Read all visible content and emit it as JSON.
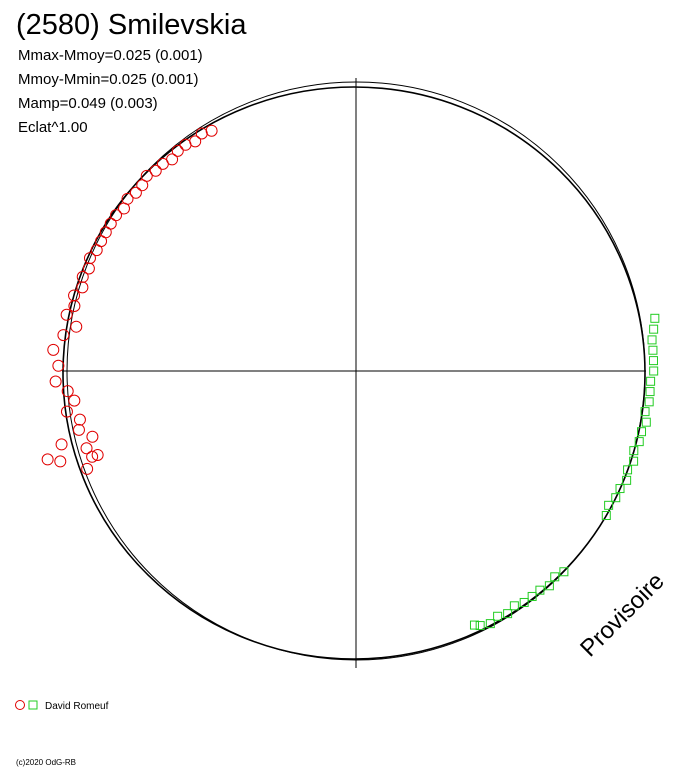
{
  "chart_data": {
    "type": "polar-scatter",
    "title": "(2580) Smilevskia",
    "stats": [
      "Mmax-Mmoy=0.025 (0.001)",
      "Mmoy-Mmin=0.025 (0.001)",
      "Mamp=0.049 (0.003)",
      "Eclat^1.00"
    ],
    "watermark": "Provisoire",
    "legend": "David Romeuf",
    "footer": "(c)2020 OdG-RB",
    "rlim": [
      0,
      1
    ],
    "series": [
      {
        "color": "#e00000",
        "marker": "circle",
        "angles": [
          121,
          123,
          125,
          127,
          129,
          131,
          133,
          135,
          137,
          139,
          141,
          143,
          145,
          147,
          149,
          151,
          153,
          155,
          157,
          159,
          161,
          163,
          165,
          167,
          169,
          171,
          173,
          176,
          179,
          182,
          184,
          186,
          188,
          190,
          192,
          194,
          196,
          198,
          200,
          197,
          194,
          196,
          198
        ],
        "values": [
          0.97,
          0.98,
          0.97,
          0.98,
          0.98,
          0.97,
          0.98,
          0.98,
          0.99,
          0.98,
          0.98,
          0.99,
          0.98,
          0.99,
          0.99,
          0.99,
          0.99,
          0.99,
          1.0,
          0.99,
          1.0,
          0.99,
          1.01,
          1.0,
          1.02,
          0.98,
          1.02,
          1.05,
          1.03,
          1.04,
          1.0,
          0.98,
          1.01,
          0.97,
          0.98,
          0.94,
          0.97,
          0.96,
          0.99,
          1.07,
          1.05,
          1.11,
          0.94
        ]
      },
      {
        "color": "#22cc22",
        "marker": "square",
        "angles": [
          10,
          8,
          6,
          4,
          2,
          0,
          -2,
          -4,
          -6,
          -8,
          -10,
          -12,
          -14,
          -16,
          -18,
          -20,
          -22,
          -24,
          -26,
          -28,
          -30,
          -44,
          -46,
          -48,
          -50,
          -52,
          -54,
          -56,
          -58,
          -60,
          -62,
          -64,
          -65
        ],
        "values": [
          1.05,
          1.04,
          1.03,
          1.03,
          1.03,
          1.03,
          1.02,
          1.02,
          1.02,
          1.01,
          1.02,
          1.01,
          1.01,
          1.0,
          1.01,
          1.0,
          1.01,
          1.0,
          1.0,
          0.99,
          1.0,
          1.0,
          0.99,
          1.0,
          0.99,
          0.99,
          0.99,
          0.98,
          0.99,
          0.98,
          0.99,
          0.98,
          0.97
        ]
      }
    ]
  }
}
